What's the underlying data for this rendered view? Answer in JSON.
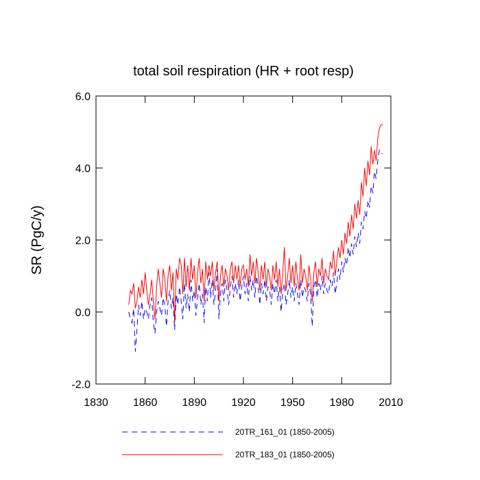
{
  "chart_data": {
    "type": "line",
    "title": "total soil respiration (HR + root resp)",
    "y_label": "SR  (PgC/y)",
    "x": [
      1850,
      1851,
      1852,
      1853,
      1854,
      1855,
      1856,
      1857,
      1858,
      1859,
      1860,
      1861,
      1862,
      1863,
      1864,
      1865,
      1866,
      1867,
      1868,
      1869,
      1870,
      1871,
      1872,
      1873,
      1874,
      1875,
      1876,
      1877,
      1878,
      1879,
      1880,
      1881,
      1882,
      1883,
      1884,
      1885,
      1886,
      1887,
      1888,
      1889,
      1890,
      1891,
      1892,
      1893,
      1894,
      1895,
      1896,
      1897,
      1898,
      1899,
      1900,
      1901,
      1902,
      1903,
      1904,
      1905,
      1906,
      1907,
      1908,
      1909,
      1910,
      1911,
      1912,
      1913,
      1914,
      1915,
      1916,
      1917,
      1918,
      1919,
      1920,
      1921,
      1922,
      1923,
      1924,
      1925,
      1926,
      1927,
      1928,
      1929,
      1930,
      1931,
      1932,
      1933,
      1934,
      1935,
      1936,
      1937,
      1938,
      1939,
      1940,
      1941,
      1942,
      1943,
      1944,
      1945,
      1946,
      1947,
      1948,
      1949,
      1950,
      1951,
      1952,
      1953,
      1954,
      1955,
      1956,
      1957,
      1958,
      1959,
      1960,
      1961,
      1962,
      1963,
      1964,
      1965,
      1966,
      1967,
      1968,
      1969,
      1970,
      1971,
      1972,
      1973,
      1974,
      1975,
      1976,
      1977,
      1978,
      1979,
      1980,
      1981,
      1982,
      1983,
      1984,
      1985,
      1986,
      1987,
      1988,
      1989,
      1990,
      1991,
      1992,
      1993,
      1994,
      1995,
      1996,
      1997,
      1998,
      1999,
      2000,
      2001,
      2002,
      2003,
      2004,
      2005
    ],
    "series": [
      {
        "name": "20TR_161_01 (1850-2005)",
        "color": "#0000ff",
        "dash": true,
        "values": [
          0.0,
          -0.2,
          -0.3,
          0.1,
          -1.1,
          -0.5,
          0.2,
          -0.1,
          0.3,
          -0.2,
          0.1,
          0.0,
          -0.2,
          0.2,
          0.4,
          -0.3,
          -0.6,
          0.0,
          0.3,
          0.1,
          -0.1,
          0.4,
          0.2,
          -0.4,
          0.3,
          0.6,
          0.1,
          0.4,
          -0.5,
          0.5,
          0.2,
          0.7,
          0.3,
          -0.2,
          0.8,
          0.1,
          0.5,
          0.0,
          0.9,
          0.3,
          0.6,
          -0.1,
          0.4,
          0.8,
          0.2,
          0.5,
          -0.3,
          0.7,
          0.3,
          1.1,
          0.4,
          0.9,
          0.2,
          0.6,
          1.2,
          -0.2,
          0.5,
          0.8,
          0.3,
          0.9,
          0.6,
          0.2,
          0.7,
          1.0,
          0.4,
          0.8,
          0.5,
          0.9,
          0.3,
          0.7,
          1.0,
          0.5,
          0.8,
          0.3,
          1.0,
          0.6,
          0.9,
          0.4,
          1.0,
          0.7,
          0.2,
          0.8,
          0.5,
          0.9,
          0.3,
          0.7,
          0.6,
          0.2,
          0.8,
          0.5,
          0.9,
          0.3,
          0.7,
          0.0,
          0.6,
          0.8,
          0.2,
          0.5,
          0.9,
          0.4,
          0.7,
          0.3,
          0.8,
          0.5,
          0.2,
          0.9,
          0.4,
          0.7,
          0.6,
          0.3,
          0.8,
          0.5,
          -0.4,
          0.7,
          0.9,
          0.4,
          0.8,
          0.6,
          1.0,
          0.5,
          0.8,
          0.6,
          0.5,
          0.9,
          0.7,
          1.1,
          0.5,
          0.8,
          1.2,
          0.9,
          1.4,
          1.1,
          1.5,
          1.3,
          1.8,
          1.5,
          1.9,
          1.6,
          2.1,
          1.8,
          2.2,
          1.9,
          2.5,
          2.3,
          2.8,
          2.6,
          3.1,
          2.9,
          3.5,
          3.3,
          3.9,
          3.7,
          4.2,
          4.5,
          4.4,
          4.4
        ]
      },
      {
        "name": "20TR_183_01 (1850-2005)",
        "color": "#ff0000",
        "dash": false,
        "values": [
          0.2,
          0.6,
          0.5,
          0.8,
          0.1,
          0.3,
          0.7,
          0.4,
          0.9,
          0.5,
          1.1,
          0.6,
          0.2,
          0.5,
          0.9,
          0.3,
          -0.2,
          0.7,
          1.2,
          0.8,
          0.4,
          1.2,
          0.9,
          0.3,
          1.0,
          1.3,
          0.6,
          1.1,
          -0.3,
          1.2,
          0.9,
          1.5,
          1.3,
          0.5,
          1.5,
          0.7,
          1.3,
          0.6,
          1.5,
          0.9,
          1.3,
          0.4,
          1.1,
          1.5,
          0.8,
          1.2,
          0.3,
          1.4,
          0.9,
          1.3,
          1.0,
          1.4,
          0.6,
          1.1,
          1.4,
          0.3,
          1.0,
          1.3,
          0.7,
          1.2,
          1.0,
          0.6,
          1.2,
          1.4,
          0.8,
          1.3,
          0.9,
          1.3,
          0.7,
          1.2,
          1.3,
          0.9,
          1.2,
          0.7,
          1.6,
          1.0,
          1.4,
          0.8,
          1.5,
          1.1,
          0.6,
          1.3,
          0.9,
          1.4,
          0.7,
          1.2,
          1.0,
          0.6,
          1.3,
          0.9,
          1.4,
          0.7,
          1.2,
          0.5,
          1.1,
          1.8,
          0.6,
          1.0,
          1.5,
          0.8,
          1.3,
          0.7,
          1.4,
          0.9,
          0.6,
          1.6,
          0.8,
          1.2,
          1.0,
          0.6,
          1.3,
          0.9,
          0.3,
          1.1,
          1.4,
          0.7,
          1.2,
          1.0,
          1.5,
          0.8,
          1.2,
          1.0,
          0.9,
          1.4,
          1.2,
          1.7,
          1.0,
          1.4,
          1.8,
          1.5,
          2.0,
          1.6,
          2.2,
          1.9,
          2.5,
          2.1,
          2.7,
          2.3,
          3.0,
          2.6,
          3.1,
          2.7,
          3.6,
          3.2,
          4.0,
          3.5,
          4.2,
          3.8,
          4.6,
          4.1,
          4.5,
          4.2,
          4.8,
          5.1,
          5.2,
          5.2
        ]
      }
    ],
    "xlim": [
      1830,
      2010
    ],
    "xticks": [
      1830,
      1860,
      1890,
      1920,
      1950,
      1980,
      2010
    ],
    "ylim": [
      -2,
      6
    ],
    "yticks": [
      {
        "value": -2,
        "label": "-2.0"
      },
      {
        "value": 0,
        "label": "0.0"
      },
      {
        "value": 2,
        "label": "2.0"
      },
      {
        "value": 4,
        "label": "4.0"
      },
      {
        "value": 6,
        "label": "6.0"
      }
    ],
    "grid": false
  }
}
